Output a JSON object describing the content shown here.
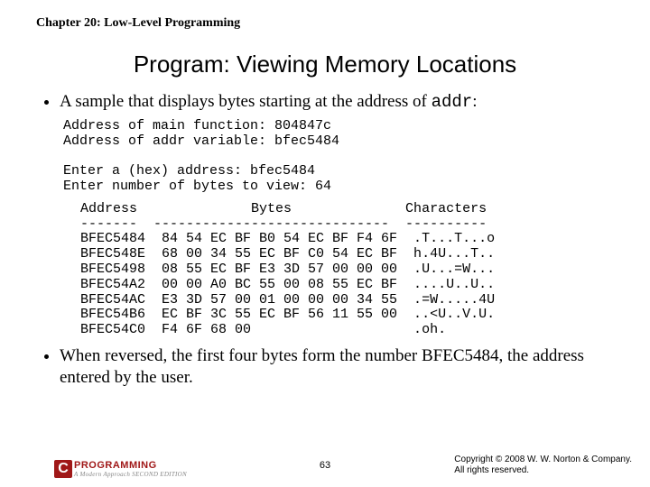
{
  "chapter": "Chapter 20: Low-Level Programming",
  "title": "Program: Viewing Memory Locations",
  "bullet1_prefix": "A sample that displays bytes starting at the address of ",
  "bullet1_code": "addr",
  "bullet1_suffix": ":",
  "code_lines": "Address of main function: 804847c\nAddress of addr variable: bfec5484\n\nEnter a (hex) address: bfec5484\nEnter number of bytes to view: 64",
  "dump_header": " Address              Bytes              Characters",
  "dump_divider": " -------  -----------------------------  ----------",
  "rows": [
    {
      "addr": "BFEC5484",
      "bytes": "84 54 EC BF B0 54 EC BF F4 6F",
      "chars": ".T...T...o"
    },
    {
      "addr": "BFEC548E",
      "bytes": "68 00 34 55 EC BF C0 54 EC BF",
      "chars": "h.4U...T.."
    },
    {
      "addr": "BFEC5498",
      "bytes": "08 55 EC BF E3 3D 57 00 00 00",
      "chars": ".U...=W..."
    },
    {
      "addr": "BFEC54A2",
      "bytes": "00 00 A0 BC 55 00 08 55 EC BF",
      "chars": "....U..U.."
    },
    {
      "addr": "BFEC54AC",
      "bytes": "E3 3D 57 00 01 00 00 00 34 55",
      "chars": ".=W.....4U"
    },
    {
      "addr": "BFEC54B6",
      "bytes": "EC BF 3C 55 EC BF 56 11 55 00",
      "chars": "..<U..V.U."
    },
    {
      "addr": "BFEC54C0",
      "bytes": "F4 6F 68 00                  ",
      "chars": ".oh.      "
    }
  ],
  "bullet2": "When reversed, the first four bytes form the number BFEC5484, the address entered by the user.",
  "logo_letter": "C",
  "logo_prog": "PROGRAMMING",
  "logo_sub": "A Modern Approach  SECOND EDITION",
  "pagenum": "63",
  "copyright1": "Copyright © 2008 W. W. Norton & Company.",
  "copyright2": "All rights reserved."
}
